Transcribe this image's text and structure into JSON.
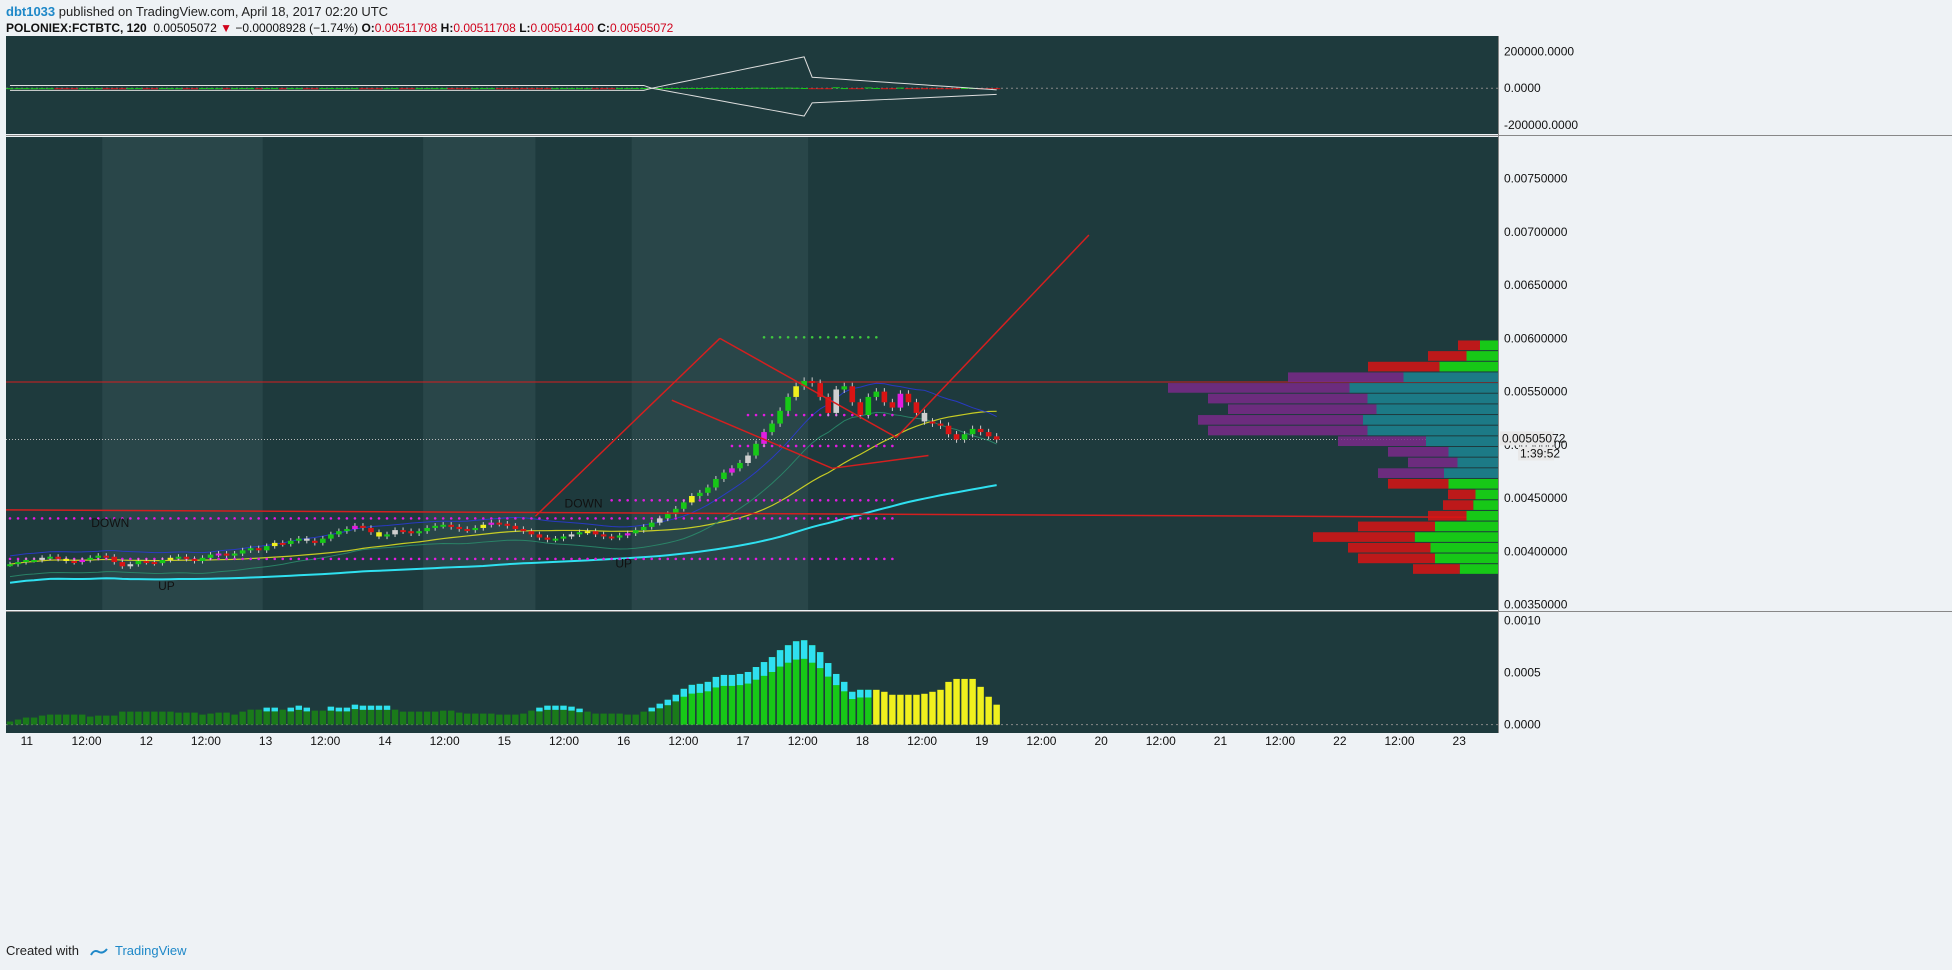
{
  "header": {
    "user": "dbt1033",
    "published_text": " published on TradingView.com, April 18, 2017 02:20 UTC",
    "symbol": "POLONIEX:FCTBTC, 120",
    "last": "0.00505072",
    "change": "−0.00008928 (−1.74%)",
    "o_label": "O:",
    "o_value": "0.00511708",
    "h_label": "H:",
    "h_value": "0.00511708",
    "l_label": "L:",
    "l_value": "0.00501400",
    "c_label": "C:",
    "c_value": "0.00505072"
  },
  "footer": {
    "created_with": "Created with",
    "brand": "TradingView"
  },
  "colors": {
    "panel_bg": "#1e3a3d",
    "session_shade": "#2c4a4c",
    "bull": "#17c817",
    "bear": "#d91414",
    "neutral_candle": "#cfcfcf",
    "magenta": "#e21ce2",
    "yellow": "#f0f01e",
    "trendline": "#d41f1f",
    "cyan": "#2fe0f0",
    "purple": "#7a2a8a",
    "teal": "#1c7a86"
  },
  "chart_data": [
    {
      "type": "candlestick",
      "title": "POLONIEX:FCTBTC, 120",
      "x_ticks": [
        "11",
        "12:00",
        "12",
        "12:00",
        "13",
        "12:00",
        "14",
        "12:00",
        "15",
        "12:00",
        "16",
        "12:00",
        "17",
        "12:00",
        "18",
        "12:00",
        "19",
        "12:00",
        "20",
        "12:00",
        "21",
        "12:00",
        "22",
        "12:00",
        "23"
      ],
      "y_ticks": [
        "0.00350000",
        "0.00400000",
        "0.00450000",
        "0.00500000",
        "0.00550000",
        "0.00600000",
        "0.00650000",
        "0.00700000",
        "0.00750000"
      ],
      "ylim": [
        0.00345,
        0.00789
      ],
      "xlim": [
        0,
        186
      ],
      "last_price_label": "0.00505072",
      "countdown_label": "1:39:52",
      "annotations": [
        {
          "text": "DOWN",
          "x": 13,
          "y": 0.00423
        },
        {
          "text": "UP",
          "x": 20,
          "y": 0.00364
        },
        {
          "text": "DOWN",
          "x": 72,
          "y": 0.00441
        },
        {
          "text": "UP",
          "x": 77,
          "y": 0.00385
        }
      ],
      "closes": [
        0.00388,
        0.0039,
        0.00392,
        0.00392,
        0.00394,
        0.00395,
        0.00393,
        0.00391,
        0.0039,
        0.00392,
        0.00394,
        0.00396,
        0.00395,
        0.0039,
        0.00386,
        0.00388,
        0.00391,
        0.0039,
        0.00389,
        0.00392,
        0.00394,
        0.00395,
        0.00393,
        0.00391,
        0.00394,
        0.00397,
        0.00398,
        0.00396,
        0.00398,
        0.00401,
        0.00403,
        0.00401,
        0.00405,
        0.00408,
        0.00407,
        0.0041,
        0.00412,
        0.0041,
        0.00408,
        0.00412,
        0.00416,
        0.00419,
        0.00421,
        0.00424,
        0.00422,
        0.00418,
        0.00414,
        0.00416,
        0.0042,
        0.00419,
        0.00417,
        0.00419,
        0.00422,
        0.00424,
        0.00425,
        0.00423,
        0.00421,
        0.0042,
        0.00422,
        0.00425,
        0.00427,
        0.00426,
        0.00424,
        0.00421,
        0.00419,
        0.00416,
        0.00413,
        0.00411,
        0.00412,
        0.00414,
        0.00416,
        0.00418,
        0.00419,
        0.00416,
        0.00414,
        0.00413,
        0.00415,
        0.00417,
        0.0042,
        0.00423,
        0.00427,
        0.00431,
        0.00435,
        0.0044,
        0.00446,
        0.00452,
        0.00455,
        0.0046,
        0.00468,
        0.00474,
        0.00478,
        0.00483,
        0.0049,
        0.00501,
        0.00512,
        0.0052,
        0.00532,
        0.00545,
        0.00555,
        0.0056,
        0.00558,
        0.00545,
        0.0053,
        0.00552,
        0.00555,
        0.0054,
        0.00528,
        0.00545,
        0.0055,
        0.0054,
        0.00535,
        0.00548,
        0.0054,
        0.0053,
        0.00522,
        0.0052,
        0.00518,
        0.0051,
        0.00505,
        0.0051,
        0.00515,
        0.00512,
        0.00508,
        0.00505
      ]
    },
    {
      "type": "bar",
      "title": "",
      "y_ticks": [
        "-200000.0000",
        "0.0000",
        "200000.0000"
      ],
      "ylim": [
        -250000,
        285000
      ]
    },
    {
      "type": "bar",
      "title": "",
      "y_ticks": [
        "0.0000",
        "0.0005",
        "0.0010"
      ],
      "ylim": [
        -8e-05,
        0.00108
      ]
    }
  ]
}
